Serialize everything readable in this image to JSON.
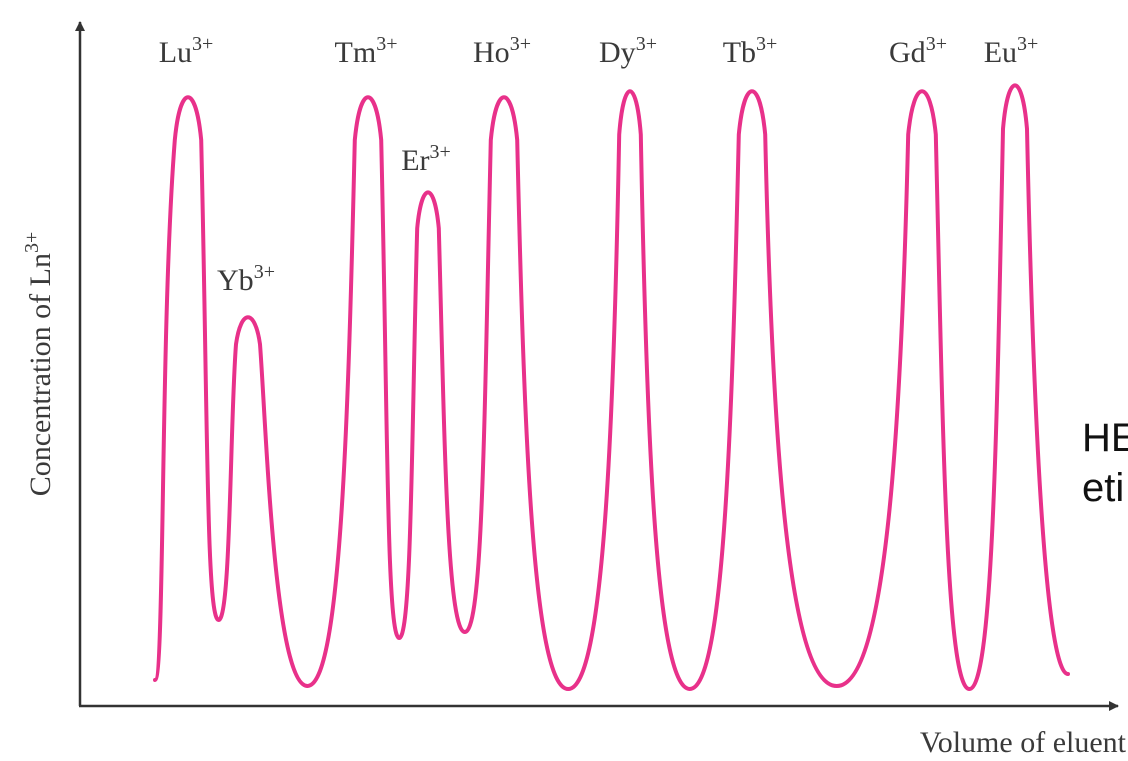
{
  "chart_data": {
    "type": "line",
    "xlabel": "Volume of eluent",
    "ylabel": {
      "text": "Concentration of Ln",
      "superscript": "3+"
    },
    "ylim": [
      0,
      1
    ],
    "grid": false,
    "legend": "none",
    "line_color": "#e8318a",
    "axis_color": "#333333",
    "peaks": [
      {
        "label": "Lu",
        "superscript": "3+",
        "height": 1.0
      },
      {
        "label": "Yb",
        "superscript": "3+",
        "height": 0.63
      },
      {
        "label": "Tm",
        "superscript": "3+",
        "height": 1.0
      },
      {
        "label": "Er",
        "superscript": "3+",
        "height": 0.84
      },
      {
        "label": "Ho",
        "superscript": "3+",
        "height": 1.0
      },
      {
        "label": "Dy",
        "superscript": "3+",
        "height": 1.01
      },
      {
        "label": "Tb",
        "superscript": "3+",
        "height": 1.01
      },
      {
        "label": "Gd",
        "superscript": "3+",
        "height": 1.01
      },
      {
        "label": "Eu",
        "superscript": "3+",
        "height": 1.02
      }
    ]
  },
  "side_note": {
    "line1": "HE",
    "line2": "eti"
  }
}
